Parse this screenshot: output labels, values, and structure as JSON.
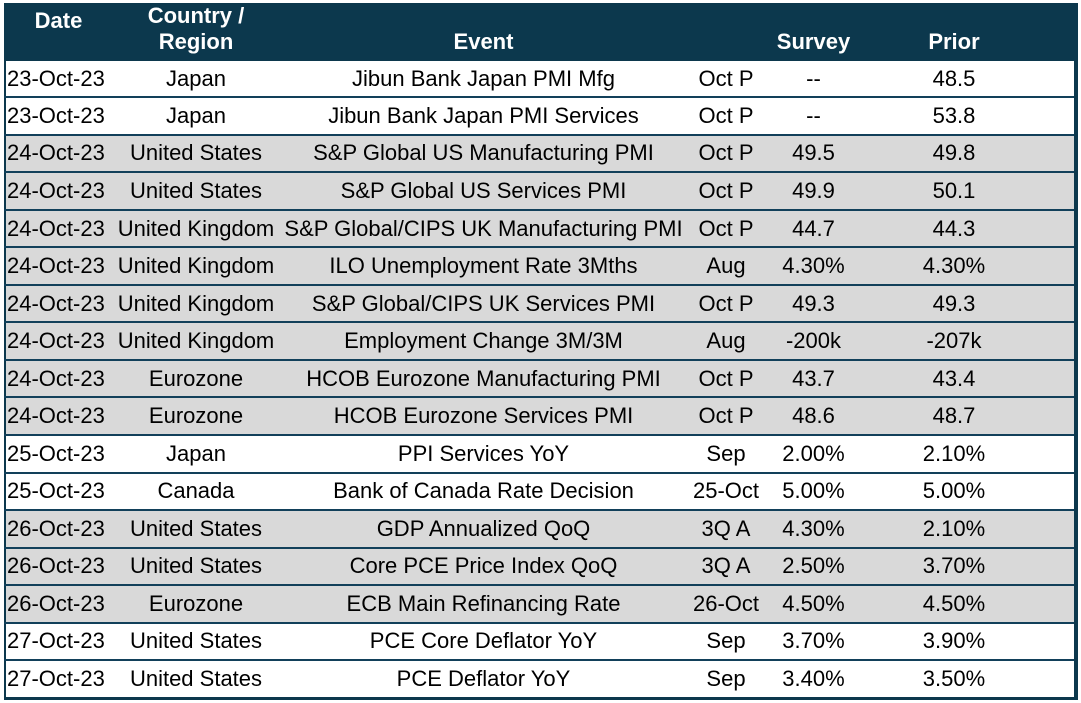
{
  "colors": {
    "header_bg": "#0c384d",
    "row_border": "#12405a",
    "row_shaded_bg": "#d9d9d9",
    "row_bg": "#ffffff",
    "header_text": "#ffffff",
    "body_text": "#000000"
  },
  "table": {
    "columns": [
      {
        "key": "date",
        "label": "Date"
      },
      {
        "key": "country",
        "label": "Country / Region"
      },
      {
        "key": "event",
        "label": "Event"
      },
      {
        "key": "period",
        "label": ""
      },
      {
        "key": "survey",
        "label": "Survey"
      },
      {
        "key": "prior",
        "label": "Prior"
      }
    ],
    "rows": [
      {
        "date": "23-Oct-23",
        "country": "Japan",
        "event": "Jibun Bank Japan PMI Mfg",
        "period": "Oct P",
        "survey": "--",
        "prior": "48.5",
        "shaded": false
      },
      {
        "date": "23-Oct-23",
        "country": "Japan",
        "event": "Jibun Bank Japan PMI Services",
        "period": "Oct P",
        "survey": "--",
        "prior": "53.8",
        "shaded": false
      },
      {
        "date": "24-Oct-23",
        "country": "United States",
        "event": "S&P Global US Manufacturing PMI",
        "period": "Oct P",
        "survey": "49.5",
        "prior": "49.8",
        "shaded": true
      },
      {
        "date": "24-Oct-23",
        "country": "United States",
        "event": "S&P Global US Services PMI",
        "period": "Oct P",
        "survey": "49.9",
        "prior": "50.1",
        "shaded": true
      },
      {
        "date": "24-Oct-23",
        "country": "United Kingdom",
        "event": "S&P Global/CIPS UK Manufacturing PMI",
        "period": "Oct P",
        "survey": "44.7",
        "prior": "44.3",
        "shaded": true
      },
      {
        "date": "24-Oct-23",
        "country": "United Kingdom",
        "event": "ILO Unemployment Rate 3Mths",
        "period": "Aug",
        "survey": "4.30%",
        "prior": "4.30%",
        "shaded": true
      },
      {
        "date": "24-Oct-23",
        "country": "United Kingdom",
        "event": "S&P Global/CIPS UK Services PMI",
        "period": "Oct P",
        "survey": "49.3",
        "prior": "49.3",
        "shaded": true
      },
      {
        "date": "24-Oct-23",
        "country": "United Kingdom",
        "event": "Employment Change 3M/3M",
        "period": "Aug",
        "survey": "-200k",
        "prior": "-207k",
        "shaded": true
      },
      {
        "date": "24-Oct-23",
        "country": "Eurozone",
        "event": "HCOB Eurozone Manufacturing PMI",
        "period": "Oct P",
        "survey": "43.7",
        "prior": "43.4",
        "shaded": true
      },
      {
        "date": "24-Oct-23",
        "country": "Eurozone",
        "event": "HCOB Eurozone Services PMI",
        "period": "Oct P",
        "survey": "48.6",
        "prior": "48.7",
        "shaded": true
      },
      {
        "date": "25-Oct-23",
        "country": "Japan",
        "event": "PPI Services YoY",
        "period": "Sep",
        "survey": "2.00%",
        "prior": "2.10%",
        "shaded": false
      },
      {
        "date": "25-Oct-23",
        "country": "Canada",
        "event": "Bank of Canada Rate Decision",
        "period": "25-Oct",
        "survey": "5.00%",
        "prior": "5.00%",
        "shaded": false
      },
      {
        "date": "26-Oct-23",
        "country": "United States",
        "event": "GDP Annualized QoQ",
        "period": "3Q A",
        "survey": "4.30%",
        "prior": "2.10%",
        "shaded": true
      },
      {
        "date": "26-Oct-23",
        "country": "United States",
        "event": "Core PCE Price Index QoQ",
        "period": "3Q A",
        "survey": "2.50%",
        "prior": "3.70%",
        "shaded": true
      },
      {
        "date": "26-Oct-23",
        "country": "Eurozone",
        "event": "ECB Main Refinancing Rate",
        "period": "26-Oct",
        "survey": "4.50%",
        "prior": "4.50%",
        "shaded": true
      },
      {
        "date": "27-Oct-23",
        "country": "United States",
        "event": "PCE Core Deflator YoY",
        "period": "Sep",
        "survey": "3.70%",
        "prior": "3.90%",
        "shaded": false
      },
      {
        "date": "27-Oct-23",
        "country": "United States",
        "event": "PCE Deflator YoY",
        "period": "Sep",
        "survey": "3.40%",
        "prior": "3.50%",
        "shaded": false
      }
    ]
  }
}
